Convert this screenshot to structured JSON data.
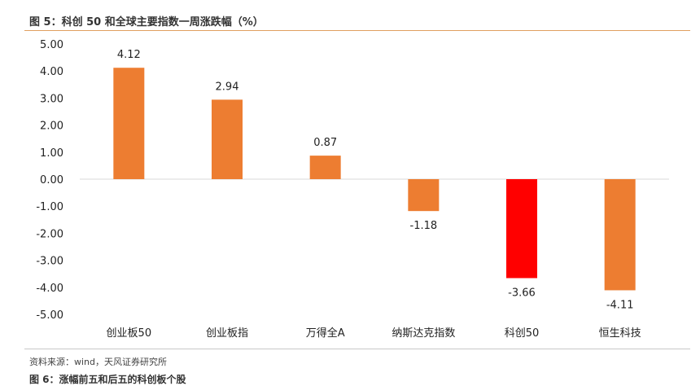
{
  "figure": {
    "title": "图 5：科创 50 和全球主要指数一周涨跌幅（%）",
    "source": "资料来源：wind，天风证券研究所",
    "next_title": "图 6：涨幅前五和后五的科创板个股"
  },
  "chart_data": {
    "type": "bar",
    "categories": [
      "创业板50",
      "创业板指",
      "万得全A",
      "纳斯达克指数",
      "科创50",
      "恒生科技"
    ],
    "values": [
      4.12,
      2.94,
      0.87,
      -1.18,
      -3.66,
      -4.11
    ],
    "data_labels": [
      "4.12",
      "2.94",
      "0.87",
      "-1.18",
      "-3.66",
      "-4.11"
    ],
    "y_ticks": [
      "5.00",
      "4.00",
      "3.00",
      "2.00",
      "1.00",
      "0.00",
      "-1.00",
      "-2.00",
      "-3.00",
      "-4.00",
      "-5.00"
    ],
    "ylim": [
      -5,
      5
    ],
    "grid": false,
    "colors": {
      "default": "#ED7D31",
      "highlight": "#FF0000",
      "highlight_category": "科创50"
    }
  }
}
